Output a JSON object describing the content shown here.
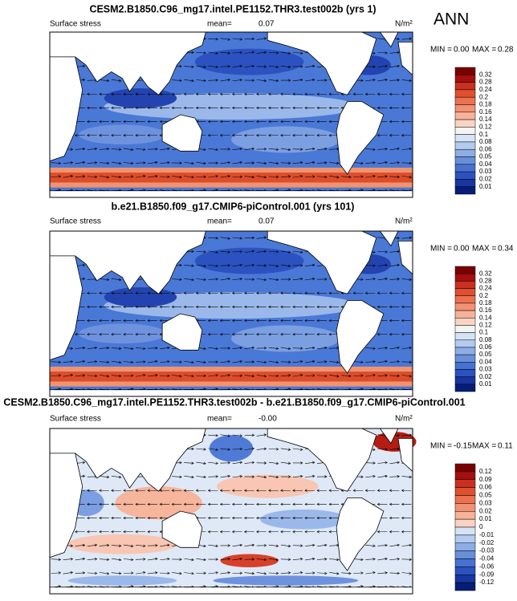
{
  "season": "ANN",
  "panels": [
    {
      "title": "CESM2.B1850.C96_mg17.intel.PE1152.THR3.test002b (yrs 1)",
      "variable": "Surface stress",
      "mean_label": "mean=",
      "mean": "0.07",
      "units": "N/m²",
      "min_label": "MIN =",
      "min": "0.00",
      "max_label": "MAX =",
      "max": "0.28",
      "colorbar": [
        0.32,
        0.28,
        0.24,
        0.2,
        0.18,
        0.16,
        0.14,
        0.12,
        0.1,
        0.08,
        0.06,
        0.05,
        0.04,
        0.03,
        0.02,
        0.01
      ]
    },
    {
      "title": "b.e21.B1850.f09_g17.CMIP6-piControl.001 (yrs 101)",
      "variable": "Surface stress",
      "mean_label": "mean=",
      "mean": "0.07",
      "units": "N/m²",
      "min_label": "MIN =",
      "min": "0.00",
      "max_label": "MAX =",
      "max": "0.34",
      "colorbar": [
        0.32,
        0.28,
        0.24,
        0.2,
        0.18,
        0.16,
        0.14,
        0.12,
        0.1,
        0.08,
        0.06,
        0.05,
        0.04,
        0.03,
        0.02,
        0.01
      ]
    },
    {
      "title": "CESM2.B1850.C96_mg17.intel.PE1152.THR3.test002b - b.e21.B1850.f09_g17.CMIP6-piControl.001",
      "variable": "Surface stress",
      "mean_label": "mean=",
      "mean": "-0.00",
      "units": "N/m²",
      "min_label": "MIN =",
      "min": "-0.15",
      "max_label": "MAX =",
      "max": "0.11",
      "colorbar": [
        0.12,
        0.09,
        0.06,
        0.05,
        0.03,
        0.02,
        0.01,
        0,
        -0.01,
        -0.02,
        -0.03,
        -0.04,
        -0.06,
        -0.09,
        -0.12
      ]
    }
  ]
}
